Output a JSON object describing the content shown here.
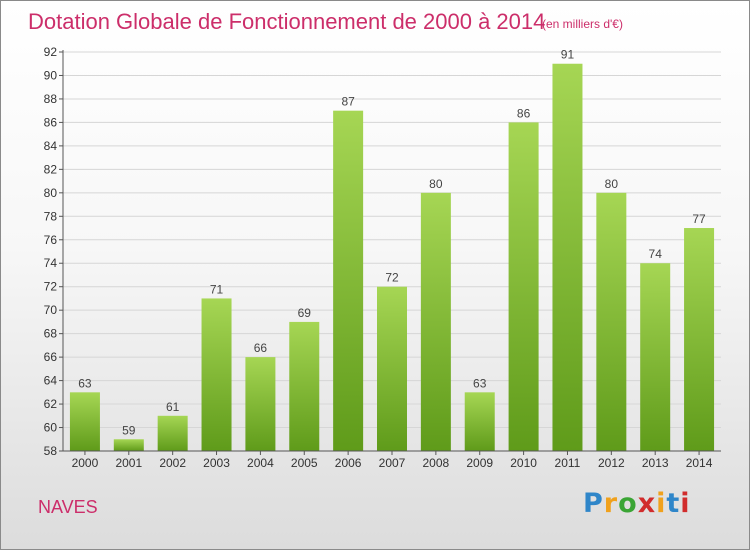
{
  "header": {
    "title": "Dotation Globale de Fonctionnement de 2000 à 2014",
    "unit": "(en milliers d'€)"
  },
  "footer": {
    "place": "NAVES",
    "logo": {
      "letters": [
        "P",
        "r",
        "o",
        "x",
        "i",
        "t",
        "i"
      ],
      "colors": [
        "#2f86c9",
        "#f0a11c",
        "#3aa535",
        "#d12c2c",
        "#f0a11c",
        "#2f86c9",
        "#d12c2c"
      ]
    }
  },
  "chart_data": {
    "type": "bar",
    "categories": [
      "2000",
      "2001",
      "2002",
      "2003",
      "2004",
      "2005",
      "2006",
      "2007",
      "2008",
      "2009",
      "2010",
      "2011",
      "2012",
      "2013",
      "2014"
    ],
    "values": [
      63,
      59,
      61,
      71,
      66,
      69,
      87,
      72,
      80,
      63,
      86,
      91,
      80,
      74,
      77
    ],
    "title": "Dotation Globale de Fonctionnement de 2000 à 2014",
    "ylim": [
      58,
      92
    ],
    "yticks": [
      58,
      60,
      62,
      64,
      66,
      68,
      70,
      72,
      74,
      76,
      78,
      80,
      82,
      84,
      86,
      88,
      90,
      92
    ],
    "grid": true,
    "legend": "none",
    "bar_color": "#7dbb2e"
  }
}
